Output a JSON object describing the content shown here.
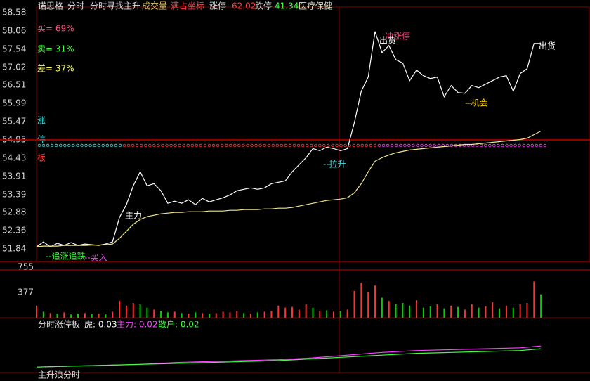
{
  "header": {
    "items": [
      {
        "text": "诺思格",
        "color": "#e0e0e0"
      },
      {
        "text": "分时",
        "color": "#e0e0e0"
      },
      {
        "text": "分时寻找主升",
        "color": "#e0e0e0"
      },
      {
        "text": "成交量",
        "color": "#e0c060"
      },
      {
        "text": "满占坐标",
        "color": "#ff4040"
      },
      {
        "text": "涨停",
        "color": "#e0e0e0"
      },
      {
        "text": "62.02",
        "color": "#ff4040"
      },
      {
        "text": "跌停",
        "color": "#e0e0e0"
      },
      {
        "text": "41.34",
        "color": "#40ff40"
      },
      {
        "text": "医疗保健",
        "color": "#e0e0c0"
      }
    ]
  },
  "side_labels": [
    {
      "text": "买= 69%",
      "color": "#ff5080"
    },
    {
      "text": "卖= 31%",
      "color": "#40ff40"
    },
    {
      "text": "差= 37%",
      "color": "#ffff60"
    },
    {
      "text": "涨",
      "color": "#40e0e0"
    },
    {
      "text": "停",
      "color": "#40e0e0"
    },
    {
      "text": "板",
      "color": "#ff4040"
    }
  ],
  "footer": {
    "title": "主升浪分时"
  },
  "chart_data": [
    {
      "type": "line",
      "x": [
        0,
        3,
        6,
        9,
        12,
        15,
        18,
        21,
        24,
        27,
        30,
        33,
        36,
        39,
        42,
        45,
        48,
        51,
        54,
        57,
        60,
        63,
        66,
        69,
        72,
        75,
        78,
        81,
        84,
        87,
        90,
        93,
        96,
        99,
        102,
        105,
        108,
        111,
        114,
        117,
        120,
        123,
        126,
        129,
        132,
        135,
        138,
        141,
        144,
        147,
        150,
        153,
        156,
        159,
        162,
        165,
        168,
        171,
        174,
        177,
        180,
        183,
        186,
        189,
        192,
        195,
        198,
        201,
        204,
        207,
        210,
        213,
        216,
        219
      ],
      "series": [
        {
          "color": "#ffffff",
          "values": [
            51.9,
            52.04,
            51.9,
            52.0,
            51.94,
            52.02,
            51.94,
            51.98,
            51.96,
            51.94,
            51.98,
            52.04,
            52.74,
            53.1,
            53.64,
            54.04,
            53.64,
            53.7,
            53.5,
            53.14,
            53.2,
            53.14,
            53.24,
            53.1,
            53.28,
            53.18,
            53.24,
            53.3,
            53.38,
            53.5,
            53.54,
            53.58,
            53.54,
            53.58,
            53.7,
            53.74,
            53.78,
            54.04,
            54.24,
            54.44,
            54.7,
            54.64,
            54.74,
            54.7,
            54.64,
            54.7,
            55.44,
            56.34,
            56.74,
            58.04,
            57.44,
            57.64,
            57.24,
            57.14,
            56.64,
            56.94,
            56.78,
            56.7,
            56.74,
            56.18,
            56.5,
            56.3,
            56.28,
            56.5,
            56.44,
            56.54,
            56.64,
            56.74,
            56.78,
            56.34,
            56.84,
            56.98,
            57.7,
            57.7
          ]
        },
        {
          "color": "#f0e68c",
          "values": [
            51.9,
            51.92,
            51.92,
            51.92,
            51.94,
            51.94,
            51.94,
            51.94,
            51.95,
            51.95,
            51.96,
            51.98,
            52.14,
            52.34,
            52.54,
            52.68,
            52.76,
            52.8,
            52.84,
            52.86,
            52.88,
            52.88,
            52.9,
            52.9,
            52.9,
            52.92,
            52.92,
            52.92,
            52.94,
            52.94,
            52.96,
            52.96,
            52.96,
            52.98,
            52.98,
            53.0,
            53.0,
            53.02,
            53.06,
            53.1,
            53.14,
            53.18,
            53.22,
            53.24,
            53.26,
            53.3,
            53.44,
            53.7,
            54.04,
            54.34,
            54.44,
            54.52,
            54.58,
            54.62,
            54.66,
            54.68,
            54.7,
            54.72,
            54.74,
            54.76,
            54.78,
            54.8,
            54.82,
            54.82,
            54.84,
            54.86,
            54.88,
            54.9,
            54.92,
            54.94,
            54.96,
            55.0,
            55.1,
            55.2
          ]
        }
      ],
      "xlim": [
        0,
        240
      ],
      "ylim": [
        51.48,
        58.74
      ],
      "yticks": [
        58.58,
        58.06,
        57.54,
        57.02,
        56.51,
        55.99,
        55.47,
        54.95,
        54.43,
        53.91,
        53.39,
        52.88,
        52.36,
        51.84
      ],
      "ref_line": 54.95,
      "annotations": [
        {
          "text": "冲涨停",
          "color": "#ff3c78"
        },
        {
          "text": "出货",
          "color": "#ffffff"
        },
        {
          "text": "出货",
          "color": "#ffffff"
        },
        {
          "text": "--机会",
          "color": "#ffd200"
        },
        {
          "text": "--拉升",
          "color": "#40e0e0"
        },
        {
          "text": "主力",
          "color": "#ffffff"
        },
        {
          "text": "--追涨追跌",
          "color": "#40ff40"
        },
        {
          "text": "--买入",
          "color": "#ff40ff"
        }
      ]
    },
    {
      "type": "bar",
      "x": [
        0,
        3,
        6,
        9,
        12,
        15,
        18,
        21,
        24,
        27,
        30,
        33,
        36,
        39,
        42,
        45,
        48,
        51,
        54,
        57,
        60,
        63,
        66,
        69,
        72,
        75,
        78,
        81,
        84,
        87,
        90,
        93,
        96,
        99,
        102,
        105,
        108,
        111,
        114,
        117,
        120,
        123,
        126,
        129,
        132,
        135,
        138,
        141,
        144,
        147,
        150,
        153,
        156,
        159,
        162,
        165,
        168,
        171,
        174,
        177,
        180,
        183,
        186,
        189,
        192,
        195,
        198,
        201,
        204,
        207,
        210,
        213,
        216,
        219
      ],
      "values": [
        180,
        90,
        70,
        60,
        80,
        50,
        60,
        70,
        55,
        60,
        50,
        90,
        250,
        180,
        220,
        200,
        150,
        120,
        100,
        80,
        90,
        70,
        60,
        80,
        70,
        60,
        70,
        90,
        80,
        100,
        70,
        60,
        80,
        90,
        100,
        180,
        150,
        160,
        120,
        200,
        150,
        100,
        110,
        90,
        100,
        120,
        400,
        520,
        380,
        480,
        300,
        250,
        200,
        220,
        180,
        260,
        150,
        170,
        200,
        140,
        180,
        160,
        120,
        200,
        150,
        170,
        230,
        140,
        180,
        150,
        200,
        220,
        540,
        350
      ],
      "colors": [
        "#ff3232",
        "#00d000",
        "#ff3232",
        "#00d000",
        "#ff3232",
        "#00d000",
        "#00d000",
        "#ff3232",
        "#00d000",
        "#ff3232",
        "#00d000",
        "#ff3232",
        "#ff3232",
        "#ff3232",
        "#ff3232",
        "#00d000",
        "#00d000",
        "#ff3232",
        "#00d000",
        "#00d000",
        "#ff3232",
        "#00d000",
        "#ff3232",
        "#00d000",
        "#ff3232",
        "#00d000",
        "#ff3232",
        "#ff3232",
        "#ff3232",
        "#ff3232",
        "#00d000",
        "#ff3232",
        "#00d000",
        "#ff3232",
        "#ff3232",
        "#ff3232",
        "#ff3232",
        "#ff3232",
        "#ff3232",
        "#ff3232",
        "#00d000",
        "#ff3232",
        "#00d000",
        "#ff3232",
        "#00d000",
        "#ff3232",
        "#ff3232",
        "#ff3232",
        "#ff3232",
        "#ff3232",
        "#00d000",
        "#ff3232",
        "#00d000",
        "#00d000",
        "#00d000",
        "#ff3232",
        "#00d000",
        "#00d000",
        "#ff3232",
        "#00d000",
        "#ff3232",
        "#00d000",
        "#ff3232",
        "#ff3232",
        "#00d000",
        "#ff3232",
        "#ff3232",
        "#00d000",
        "#ff3232",
        "#00d000",
        "#ff3232",
        "#ff3232",
        "#ff3232",
        "#00d000"
      ],
      "xlim": [
        0,
        240
      ],
      "ylim": [
        0,
        839
      ],
      "yticks": [
        755,
        377
      ]
    },
    {
      "type": "line",
      "title": "分时涨停板",
      "tiger": "虎: 0.03",
      "x": [
        0,
        15,
        30,
        45,
        60,
        75,
        90,
        105,
        120,
        135,
        150,
        165,
        180,
        195,
        210,
        219
      ],
      "series": [
        {
          "name": "主力: 0.02",
          "color": "#ff40ff",
          "values": [
            0.0,
            0.001,
            0.002,
            0.003,
            0.005,
            0.006,
            0.007,
            0.008,
            0.01,
            0.013,
            0.016,
            0.018,
            0.019,
            0.02,
            0.021,
            0.023
          ]
        },
        {
          "name": "散户: 0.02",
          "color": "#40ff40",
          "values": [
            0.0,
            0.001,
            0.002,
            0.003,
            0.004,
            0.005,
            0.006,
            0.007,
            0.009,
            0.011,
            0.013,
            0.015,
            0.016,
            0.017,
            0.018,
            0.02
          ]
        }
      ],
      "xlim": [
        0,
        240
      ],
      "ylim": [
        -0.006,
        0.04
      ]
    }
  ]
}
